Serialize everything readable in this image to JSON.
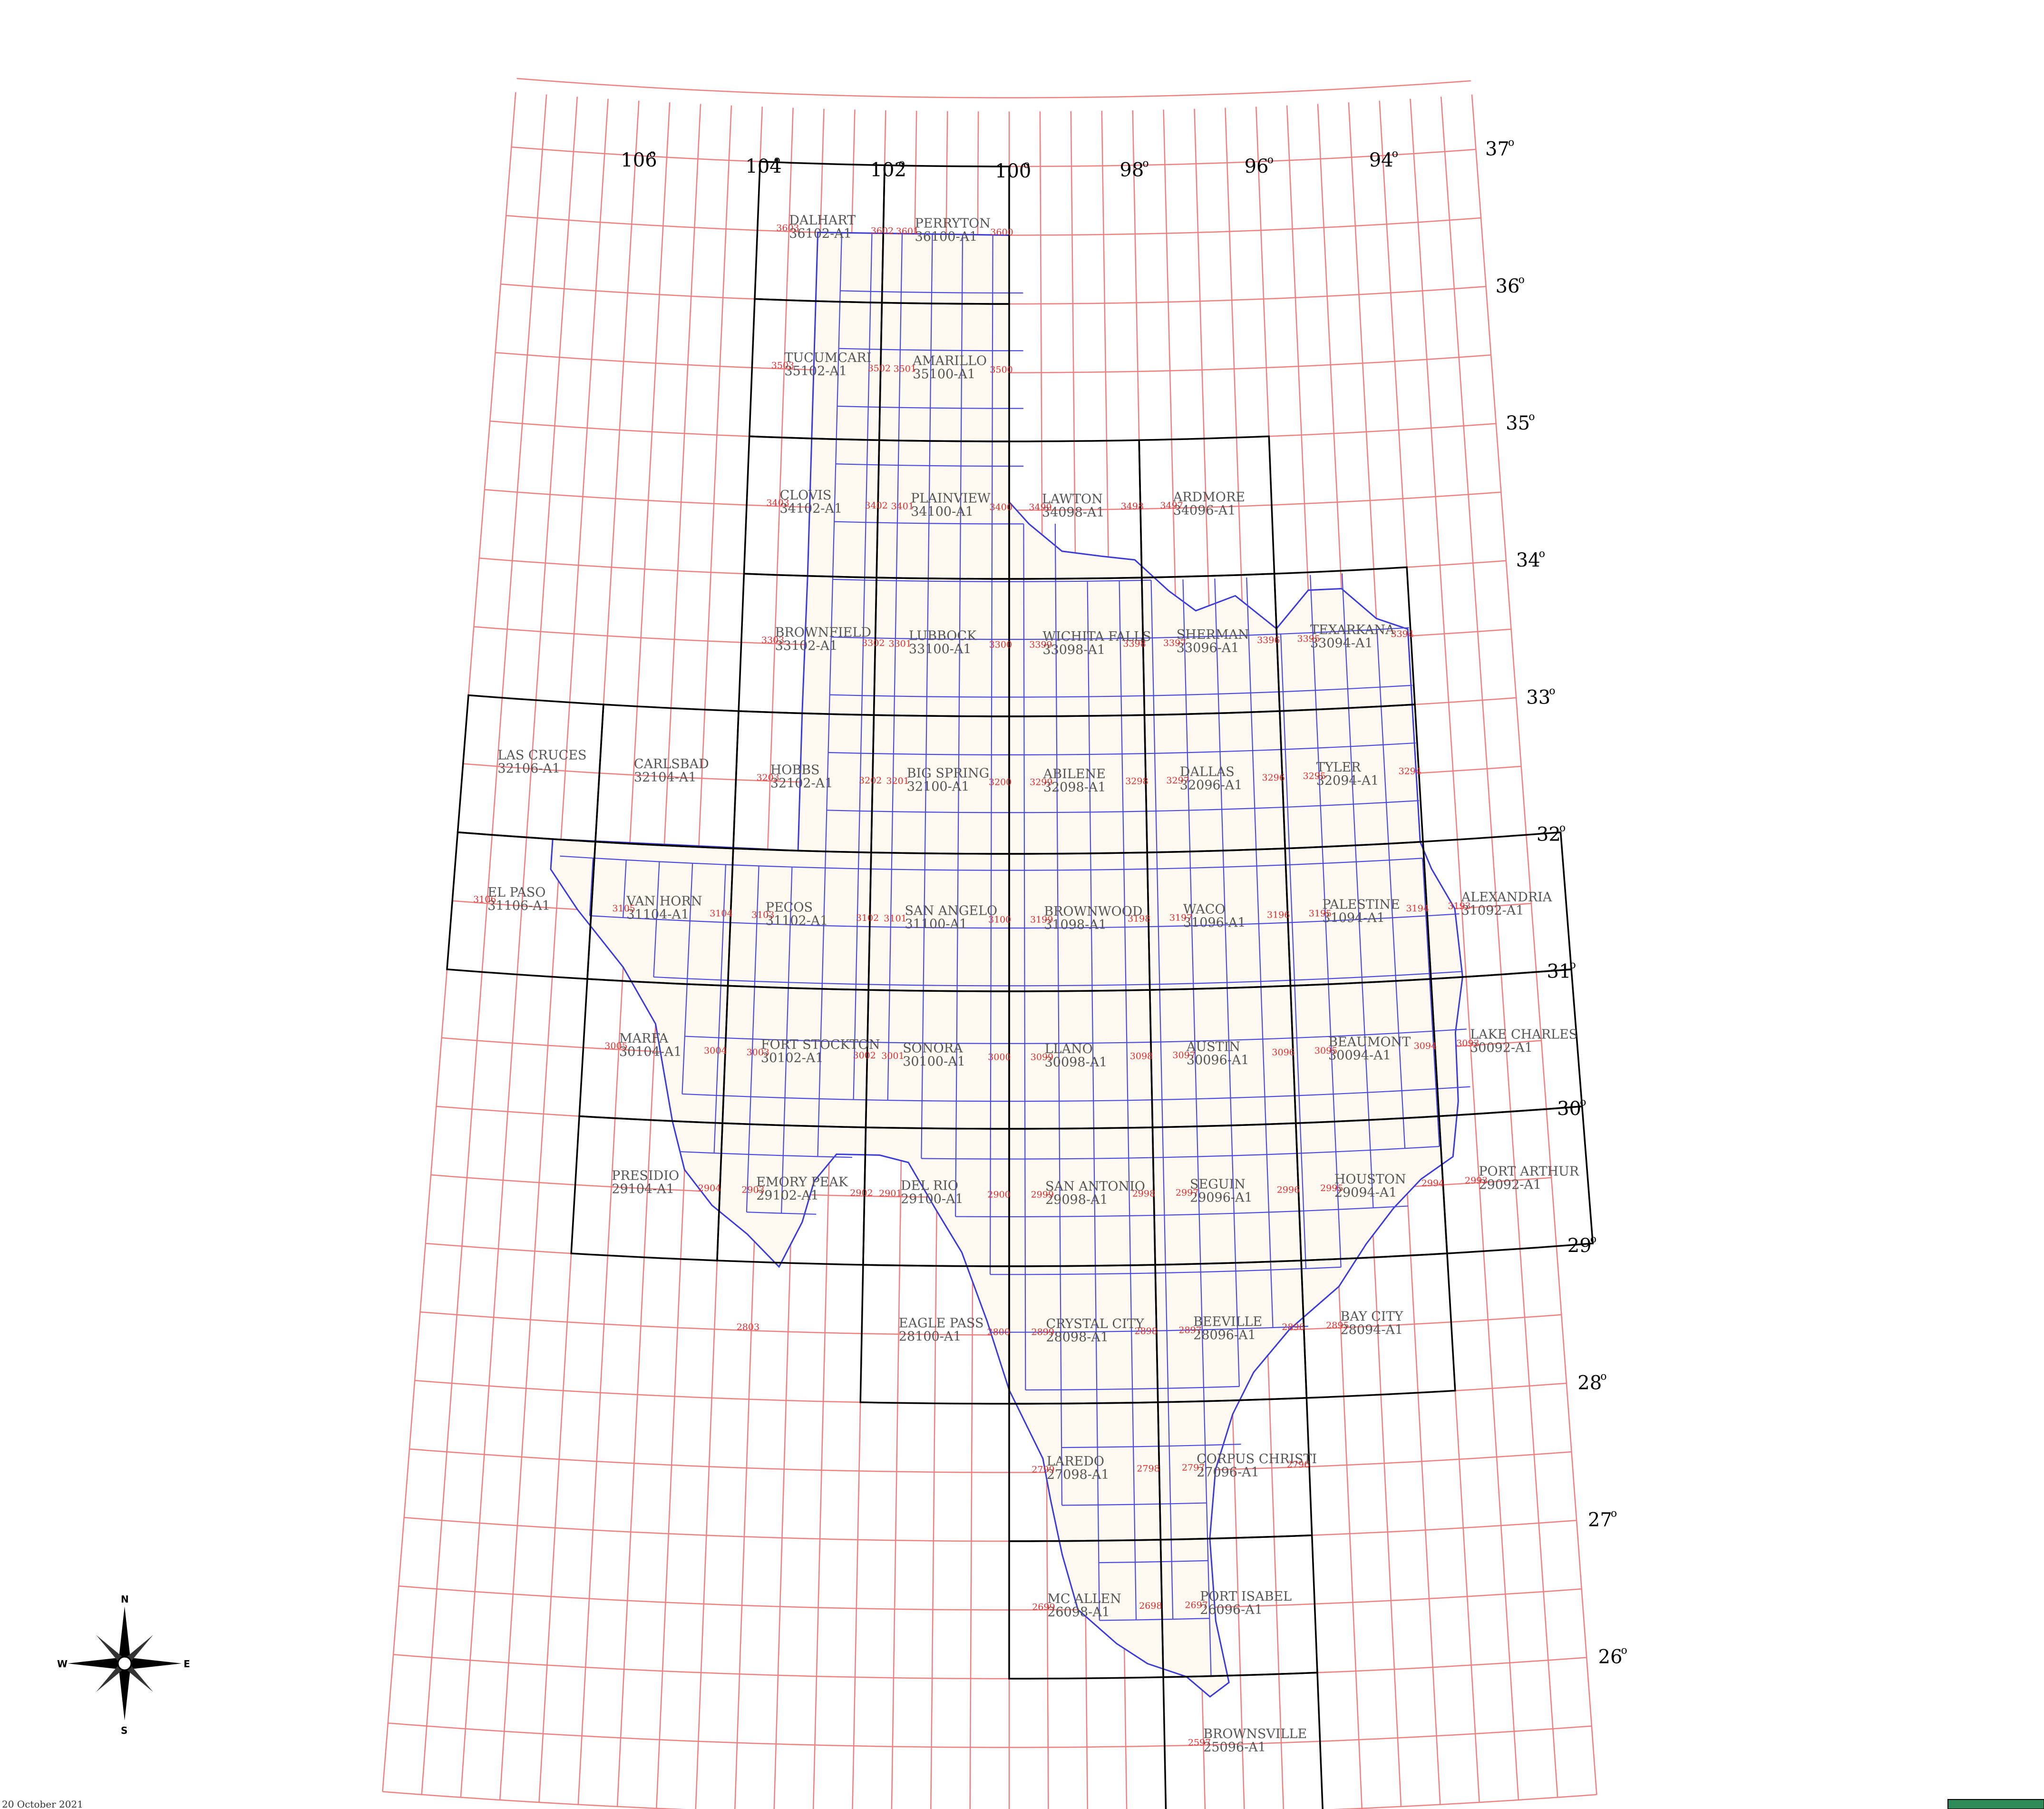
{
  "map": {
    "longitude_labels": [
      "106",
      "104",
      "102",
      "100",
      "98",
      "96",
      "94"
    ],
    "latitude_labels": [
      "37",
      "36",
      "35",
      "34",
      "33",
      "32",
      "31",
      "30",
      "29",
      "28",
      "27",
      "26"
    ],
    "degree_symbol": "o",
    "compass": {
      "n": "N",
      "s": "S",
      "e": "E",
      "w": "W"
    },
    "footer_text": "20 October 2021",
    "colors": {
      "graticule": "#f08080",
      "state_fill": "#fdf9f0",
      "county": "#4a4ae0",
      "sheet_border": "#000000",
      "subcode": "#e03030"
    },
    "quads": [
      {
        "name": "DALHART",
        "code": "36102-A1"
      },
      {
        "name": "PERRYTON",
        "code": "36100-A1"
      },
      {
        "name": "TUCUMCARI",
        "code": "35102-A1"
      },
      {
        "name": "AMARILLO",
        "code": "35100-A1"
      },
      {
        "name": "CLOVIS",
        "code": "34102-A1"
      },
      {
        "name": "PLAINVIEW",
        "code": "34100-A1"
      },
      {
        "name": "LAWTON",
        "code": "34098-A1"
      },
      {
        "name": "ARDMORE",
        "code": "34096-A1"
      },
      {
        "name": "BROWNFIELD",
        "code": "33102-A1"
      },
      {
        "name": "LUBBOCK",
        "code": "33100-A1"
      },
      {
        "name": "WICHITA FALLS",
        "code": "33098-A1"
      },
      {
        "name": "SHERMAN",
        "code": "33096-A1"
      },
      {
        "name": "TEXARKANA",
        "code": "33094-A1"
      },
      {
        "name": "LAS CRUCES",
        "code": "32106-A1"
      },
      {
        "name": "CARLSBAD",
        "code": "32104-A1"
      },
      {
        "name": "HOBBS",
        "code": "32102-A1"
      },
      {
        "name": "BIG SPRING",
        "code": "32100-A1"
      },
      {
        "name": "ABILENE",
        "code": "32098-A1"
      },
      {
        "name": "DALLAS",
        "code": "32096-A1"
      },
      {
        "name": "TYLER",
        "code": "32094-A1"
      },
      {
        "name": "EL PASO",
        "code": "31106-A1"
      },
      {
        "name": "VAN HORN",
        "code": "31104-A1"
      },
      {
        "name": "PECOS",
        "code": "31102-A1"
      },
      {
        "name": "SAN ANGELO",
        "code": "31100-A1"
      },
      {
        "name": "BROWNWOOD",
        "code": "31098-A1"
      },
      {
        "name": "WACO",
        "code": "31096-A1"
      },
      {
        "name": "PALESTINE",
        "code": "31094-A1"
      },
      {
        "name": "ALEXANDRIA",
        "code": "31092-A1"
      },
      {
        "name": "MARFA",
        "code": "30104-A1"
      },
      {
        "name": "FORT STOCKTON",
        "code": "30102-A1"
      },
      {
        "name": "SONORA",
        "code": "30100-A1"
      },
      {
        "name": "LLANO",
        "code": "30098-A1"
      },
      {
        "name": "AUSTIN",
        "code": "30096-A1"
      },
      {
        "name": "BEAUMONT",
        "code": "30094-A1"
      },
      {
        "name": "LAKE CHARLES",
        "code": "30092-A1"
      },
      {
        "name": "PRESIDIO",
        "code": "29104-A1"
      },
      {
        "name": "EMORY PEAK",
        "code": "29102-A1"
      },
      {
        "name": "DEL RIO",
        "code": "29100-A1"
      },
      {
        "name": "SAN ANTONIO",
        "code": "29098-A1"
      },
      {
        "name": "SEGUIN",
        "code": "29096-A1"
      },
      {
        "name": "HOUSTON",
        "code": "29094-A1"
      },
      {
        "name": "PORT ARTHUR",
        "code": "29092-A1"
      },
      {
        "name": "EAGLE PASS",
        "code": "28100-A1"
      },
      {
        "name": "CRYSTAL CITY",
        "code": "28098-A1"
      },
      {
        "name": "BEEVILLE",
        "code": "28096-A1"
      },
      {
        "name": "BAY CITY",
        "code": "28094-A1"
      },
      {
        "name": "LAREDO",
        "code": "27098-A1"
      },
      {
        "name": "CORPUS CHRISTI",
        "code": "27096-A1"
      },
      {
        "name": "MC ALLEN",
        "code": "26098-A1"
      },
      {
        "name": "PORT ISABEL",
        "code": "26096-A1"
      },
      {
        "name": "BROWNSVILLE",
        "code": "25096-A1"
      }
    ],
    "subcodes": [
      "3603",
      "3602",
      "3601",
      "3600",
      "3503",
      "3502",
      "3501",
      "3500",
      "3403",
      "3402",
      "3401",
      "3400",
      "3499",
      "3498",
      "3497",
      "3303",
      "3302",
      "3301",
      "3300",
      "3399",
      "3398",
      "3397",
      "3396",
      "3395",
      "3394",
      "3203",
      "3202",
      "3201",
      "3200",
      "3299",
      "3298",
      "3297",
      "3296",
      "3295",
      "3294",
      "3106",
      "3105",
      "3104",
      "3103",
      "3102",
      "3101",
      "3100",
      "3199",
      "3198",
      "3197",
      "3196",
      "3195",
      "3194",
      "3193",
      "3005",
      "3004",
      "3003",
      "3002",
      "3001",
      "3000",
      "3099",
      "3098",
      "3097",
      "3096",
      "3095",
      "3094",
      "3093",
      "2904",
      "2903",
      "2902",
      "2901",
      "2900",
      "2999",
      "2998",
      "2997",
      "2996",
      "2995",
      "2994",
      "2993",
      "2803",
      "2800",
      "2899",
      "2898",
      "2897",
      "2896",
      "2895",
      "2799",
      "2798",
      "2797",
      "2796",
      "2699",
      "2698",
      "2697",
      "2597"
    ]
  }
}
